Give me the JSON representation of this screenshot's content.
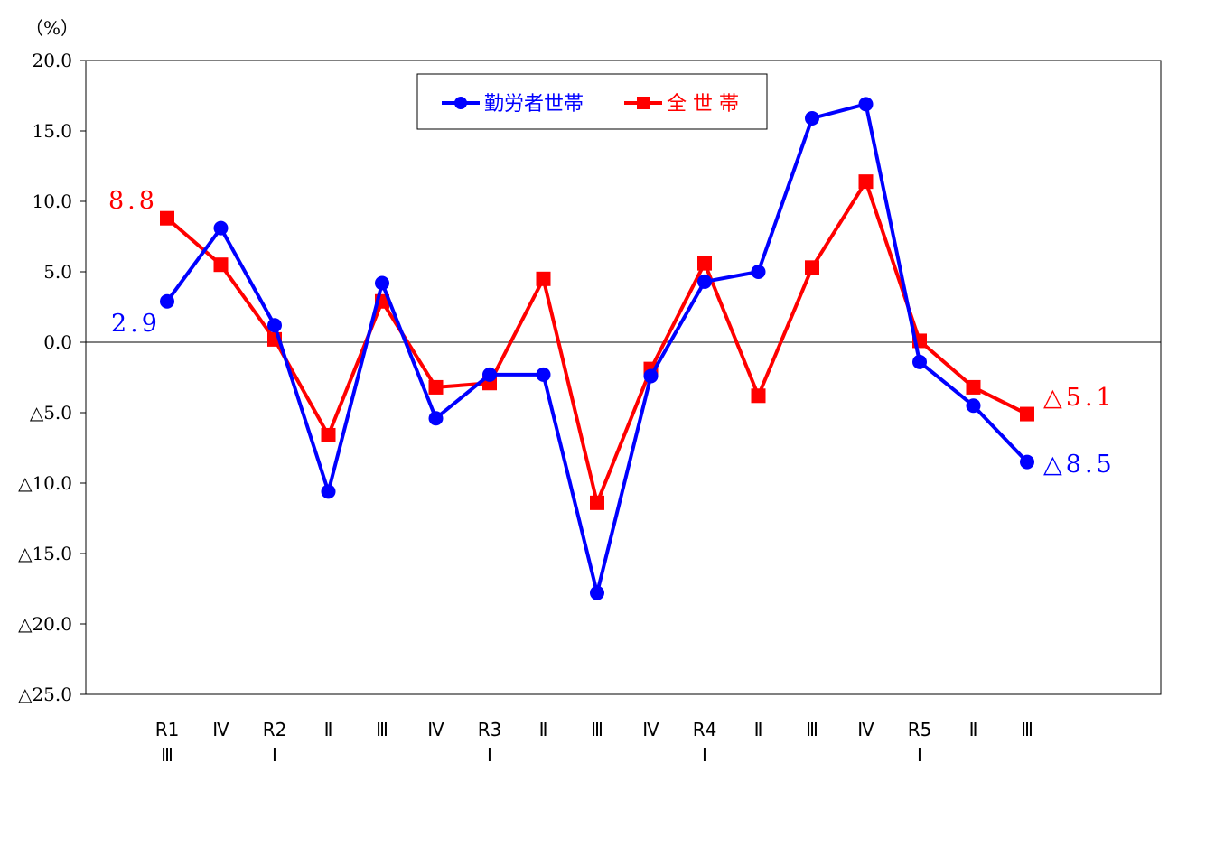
{
  "chart_data": {
    "type": "line",
    "unit_label": "（%）",
    "ylim": [
      -25,
      20
    ],
    "yticks": [
      20,
      15,
      10,
      5,
      0,
      -5,
      -10,
      -15,
      -20,
      -25
    ],
    "ytick_labels": [
      "20.0",
      "15.0",
      "10.0",
      "5.0",
      "0.0",
      "△5.0",
      "△10.0",
      "△15.0",
      "△20.0",
      "△25.0"
    ],
    "categories": [
      [
        "R1",
        "Ⅲ"
      ],
      [
        "Ⅳ"
      ],
      [
        "R2",
        "Ⅰ"
      ],
      [
        "Ⅱ"
      ],
      [
        "Ⅲ"
      ],
      [
        "Ⅳ"
      ],
      [
        "R3",
        "Ⅰ"
      ],
      [
        "Ⅱ"
      ],
      [
        "Ⅲ"
      ],
      [
        "Ⅳ"
      ],
      [
        "R4",
        "Ⅰ"
      ],
      [
        "Ⅱ"
      ],
      [
        "Ⅲ"
      ],
      [
        "Ⅳ"
      ],
      [
        "R5",
        "Ⅰ"
      ],
      [
        "Ⅱ"
      ],
      [
        "Ⅲ"
      ]
    ],
    "series": [
      {
        "name": "勤労者世帯",
        "color": "#0000ff",
        "marker": "circle",
        "values": [
          2.9,
          8.1,
          1.2,
          -10.6,
          4.2,
          -5.4,
          -2.3,
          -2.3,
          -17.8,
          -2.4,
          4.3,
          5.0,
          15.9,
          16.9,
          -1.4,
          -4.5,
          -8.5
        ],
        "labels": [
          {
            "index": 0,
            "text": "2.9"
          },
          {
            "index": 16,
            "text": "△8.5"
          }
        ]
      },
      {
        "name": "全 世 帯",
        "color": "#ff0000",
        "marker": "square",
        "values": [
          8.8,
          5.5,
          0.2,
          -6.6,
          2.9,
          -3.2,
          -2.9,
          4.5,
          -11.4,
          -1.9,
          5.6,
          -3.8,
          5.3,
          11.4,
          0.1,
          -3.2,
          -5.1
        ],
        "labels": [
          {
            "index": 0,
            "text": "8.8"
          },
          {
            "index": 16,
            "text": "△5.1"
          }
        ]
      }
    ],
    "legend_position": "top-center",
    "grid": false,
    "zero_line": true
  }
}
